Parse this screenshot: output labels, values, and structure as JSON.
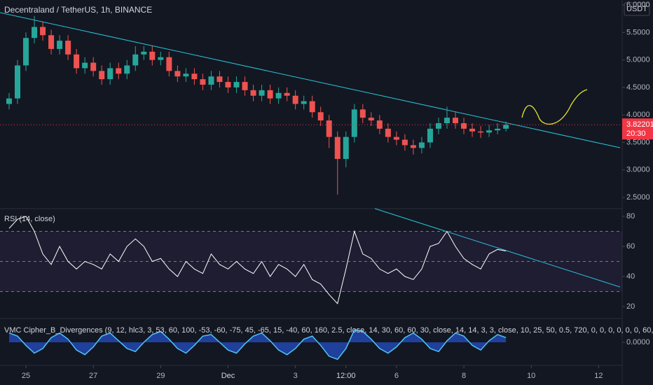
{
  "chart_data": [
    {
      "type": "candlestick",
      "title": "Decentraland / TetherUS, 1h, BINANCE",
      "currency": "USDT",
      "up_color": "#26a69a",
      "down_color": "#ef5350",
      "x": [
        -0.5,
        -0.25,
        0,
        0.25,
        0.5,
        0.75,
        1,
        1.25,
        1.5,
        1.75,
        2,
        2.25,
        2.5,
        2.75,
        3,
        3.25,
        3.5,
        3.75,
        4,
        4.25,
        4.5,
        4.75,
        5,
        5.25,
        5.5,
        5.75,
        6,
        6.25,
        6.5,
        6.75,
        7,
        7.25,
        7.5,
        7.75,
        8,
        8.25,
        8.5,
        8.75,
        9,
        9.25,
        9.5,
        9.75,
        10,
        10.25,
        10.5,
        10.75,
        11,
        11.25,
        11.5,
        11.75,
        12,
        12.25,
        12.5,
        12.75,
        13,
        13.25,
        13.5,
        13.75,
        14,
        14.25
      ],
      "open": [
        4.2,
        4.3,
        4.9,
        5.4,
        5.6,
        5.45,
        5.2,
        5.35,
        5.1,
        4.85,
        4.95,
        4.8,
        4.65,
        4.85,
        4.75,
        4.9,
        5.1,
        5.15,
        5.0,
        5.05,
        4.8,
        4.7,
        4.75,
        4.65,
        4.55,
        4.7,
        4.6,
        4.5,
        4.6,
        4.45,
        4.35,
        4.45,
        4.3,
        4.4,
        4.35,
        4.2,
        4.25,
        4.05,
        3.9,
        3.6,
        3.2,
        3.6,
        4.1,
        3.95,
        3.9,
        3.75,
        3.6,
        3.55,
        3.45,
        3.4,
        3.5,
        3.75,
        3.85,
        3.95,
        3.85,
        3.75,
        3.7,
        3.68,
        3.72,
        3.75
      ],
      "high": [
        4.4,
        5.0,
        5.5,
        5.8,
        5.7,
        5.55,
        5.45,
        5.45,
        5.2,
        5.05,
        5.05,
        4.9,
        4.95,
        4.95,
        5.0,
        5.25,
        5.25,
        5.25,
        5.15,
        5.15,
        4.9,
        4.85,
        4.85,
        4.75,
        4.8,
        4.8,
        4.7,
        4.7,
        4.7,
        4.55,
        4.55,
        4.55,
        4.5,
        4.5,
        4.45,
        4.35,
        4.35,
        4.15,
        4.0,
        3.7,
        3.7,
        4.2,
        4.2,
        4.05,
        4.0,
        3.85,
        3.7,
        3.65,
        3.55,
        3.6,
        3.85,
        3.95,
        4.15,
        4.05,
        3.95,
        3.85,
        3.8,
        3.82,
        3.85,
        3.88
      ],
      "low": [
        4.1,
        4.2,
        4.8,
        5.3,
        5.35,
        5.1,
        5.1,
        5.0,
        4.75,
        4.75,
        4.7,
        4.55,
        4.55,
        4.65,
        4.65,
        4.8,
        5.0,
        4.9,
        4.9,
        4.7,
        4.6,
        4.6,
        4.55,
        4.45,
        4.45,
        4.5,
        4.4,
        4.4,
        4.35,
        4.25,
        4.25,
        4.2,
        4.2,
        4.25,
        4.1,
        4.1,
        3.95,
        3.8,
        3.4,
        2.55,
        3.05,
        3.5,
        3.85,
        3.8,
        3.65,
        3.5,
        3.45,
        3.35,
        3.28,
        3.3,
        3.4,
        3.65,
        3.75,
        3.75,
        3.65,
        3.6,
        3.58,
        3.6,
        3.65,
        3.7
      ],
      "close": [
        4.3,
        4.9,
        5.4,
        5.6,
        5.45,
        5.2,
        5.35,
        5.1,
        4.85,
        4.95,
        4.8,
        4.65,
        4.85,
        4.75,
        4.9,
        5.1,
        5.15,
        5.0,
        5.05,
        4.8,
        4.7,
        4.75,
        4.65,
        4.55,
        4.7,
        4.6,
        4.5,
        4.6,
        4.45,
        4.35,
        4.45,
        4.3,
        4.4,
        4.35,
        4.2,
        4.25,
        4.05,
        3.9,
        3.6,
        3.2,
        3.6,
        4.1,
        3.95,
        3.9,
        3.75,
        3.6,
        3.55,
        3.45,
        3.4,
        3.5,
        3.75,
        3.85,
        3.95,
        3.85,
        3.75,
        3.7,
        3.68,
        3.72,
        3.75,
        3.82
      ],
      "last_price": 3.82201,
      "countdown": "20:30",
      "last_price_color": "#f23645",
      "xlim": [
        -0.77,
        17.7
      ],
      "xticks": [
        {
          "value": 0,
          "label": "25"
        },
        {
          "value": 2,
          "label": "27"
        },
        {
          "value": 4,
          "label": "29"
        },
        {
          "value": 6,
          "label": "Dec"
        },
        {
          "value": 8,
          "label": "3"
        },
        {
          "value": 9.5,
          "label": "12:00"
        },
        {
          "value": 11,
          "label": "6"
        },
        {
          "value": 13,
          "label": "8"
        },
        {
          "value": 15,
          "label": "10"
        },
        {
          "value": 17,
          "label": "12"
        }
      ],
      "ylim": [
        2.31,
        6.09
      ],
      "yticks": [
        {
          "value": 6,
          "label": "6.0000"
        },
        {
          "value": 5.5,
          "label": "5.5000"
        },
        {
          "value": 5,
          "label": "5.0000"
        },
        {
          "value": 4.5,
          "label": "4.5000"
        },
        {
          "value": 4,
          "label": "4.0000"
        },
        {
          "value": 3.5,
          "label": "3.5000"
        },
        {
          "value": 3,
          "label": "3.0000"
        },
        {
          "value": 2.5,
          "label": "2.5000"
        }
      ]
    },
    {
      "type": "line",
      "title": "RSI (14, close)",
      "color": "#ffffff",
      "values": [
        72,
        78,
        80,
        70,
        55,
        48,
        60,
        50,
        45,
        50,
        48,
        45,
        55,
        50,
        60,
        65,
        60,
        50,
        52,
        45,
        40,
        50,
        45,
        42,
        55,
        48,
        45,
        50,
        45,
        42,
        50,
        40,
        48,
        45,
        40,
        48,
        38,
        35,
        28,
        22,
        45,
        70,
        55,
        52,
        45,
        42,
        45,
        40,
        38,
        45,
        60,
        62,
        70,
        60,
        52,
        48,
        45,
        55,
        58,
        57
      ],
      "bands": [
        70,
        50,
        30
      ],
      "band_color": "#7e57c2",
      "ylim": [
        13.5,
        84.2
      ],
      "yticks": [
        20,
        40,
        60,
        80
      ]
    },
    {
      "type": "area",
      "title": "VMC Cipher_B_Divergences (9, 12, hlc3, 3, 53, 60, 100, -53, -60, -75, 45, -65, 15, -40, 60, 160, 2.5, close, 14, 30, 60, 60, 30, close, 14, 14, 3, 3, close, 10, 25, 50, 0.5, 720, 0, 0, 0, 0, 0, 0, 60,",
      "color": "#2962ff",
      "line_color": "#4fc3f7",
      "values": [
        30,
        20,
        -10,
        -35,
        -20,
        15,
        30,
        10,
        -25,
        -40,
        -15,
        20,
        30,
        5,
        -20,
        -30,
        0,
        25,
        35,
        10,
        -20,
        -35,
        -10,
        20,
        25,
        0,
        -25,
        -35,
        -5,
        20,
        30,
        5,
        -25,
        -40,
        -20,
        10,
        20,
        -10,
        -45,
        -55,
        -20,
        40,
        35,
        10,
        -20,
        -35,
        -15,
        15,
        30,
        10,
        -20,
        -30,
        5,
        30,
        20,
        -10,
        -25,
        5,
        25,
        15
      ],
      "ylim": [
        -70,
        70
      ],
      "yticks": [
        {
          "value": 0,
          "label": "0.0000"
        }
      ]
    }
  ]
}
